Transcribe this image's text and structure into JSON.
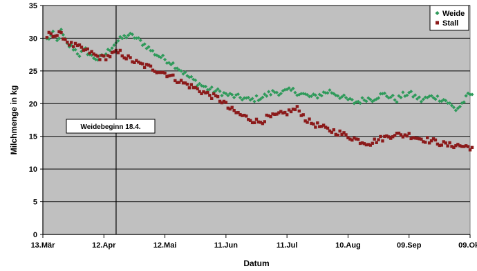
{
  "chart_data": {
    "type": "scatter",
    "title": "",
    "xlabel": "Datum",
    "ylabel": "Milchmenge in kg",
    "ylim": [
      0,
      35
    ],
    "yticks": [
      0,
      5,
      10,
      15,
      20,
      25,
      30,
      35
    ],
    "xlim": [
      "13.Mär",
      "09.Okt"
    ],
    "xticks": [
      {
        "label": "13.Mär",
        "day": 0
      },
      {
        "label": "12.Apr",
        "day": 30
      },
      {
        "label": "12.Mai",
        "day": 60
      },
      {
        "label": "11.Jun",
        "day": 90
      },
      {
        "label": "11.Jul",
        "day": 120
      },
      {
        "label": "10.Aug",
        "day": 150
      },
      {
        "label": "09.Sep",
        "day": 180
      },
      {
        "label": "09.Okt",
        "day": 210
      }
    ],
    "grid": "horizontal",
    "legend_position": "top-right",
    "annotation": {
      "label": "Weidebeginn 18.4.",
      "day": 36
    },
    "series": [
      {
        "name": "Weide",
        "color": "#2e9a5a",
        "marker": "diamond",
        "anchors": [
          [
            2,
            29.8
          ],
          [
            5,
            30.6
          ],
          [
            7,
            29.5
          ],
          [
            9,
            31.0
          ],
          [
            12,
            29.0
          ],
          [
            15,
            28.5
          ],
          [
            18,
            27.5
          ],
          [
            21,
            28.2
          ],
          [
            24,
            27.2
          ],
          [
            27,
            26.8
          ],
          [
            30,
            27.3
          ],
          [
            32,
            28.0
          ],
          [
            34,
            28.8
          ],
          [
            36,
            29.4
          ],
          [
            39,
            30.0
          ],
          [
            42,
            30.5
          ],
          [
            45,
            30.2
          ],
          [
            48,
            29.5
          ],
          [
            51,
            28.8
          ],
          [
            54,
            27.9
          ],
          [
            57,
            27.3
          ],
          [
            60,
            26.8
          ],
          [
            63,
            26.3
          ],
          [
            66,
            25.6
          ],
          [
            69,
            24.8
          ],
          [
            72,
            24.0
          ],
          [
            75,
            23.4
          ],
          [
            78,
            22.8
          ],
          [
            81,
            22.3
          ],
          [
            84,
            22.0
          ],
          [
            87,
            21.8
          ],
          [
            90,
            21.4
          ],
          [
            93,
            21.2
          ],
          [
            96,
            21.0
          ],
          [
            99,
            20.8
          ],
          [
            102,
            20.5
          ],
          [
            105,
            20.8
          ],
          [
            108,
            21.0
          ],
          [
            111,
            21.5
          ],
          [
            114,
            21.8
          ],
          [
            117,
            21.7
          ],
          [
            120,
            21.9
          ],
          [
            123,
            22.0
          ],
          [
            126,
            21.6
          ],
          [
            129,
            21.3
          ],
          [
            132,
            21.0
          ],
          [
            135,
            21.2
          ],
          [
            138,
            21.6
          ],
          [
            141,
            21.9
          ],
          [
            144,
            21.5
          ],
          [
            147,
            21.0
          ],
          [
            150,
            20.6
          ],
          [
            153,
            20.2
          ],
          [
            156,
            20.4
          ],
          [
            159,
            20.8
          ],
          [
            162,
            20.7
          ],
          [
            165,
            21.2
          ],
          [
            168,
            21.4
          ],
          [
            171,
            21.0
          ],
          [
            174,
            20.6
          ],
          [
            177,
            21.3
          ],
          [
            180,
            21.6
          ],
          [
            183,
            21.1
          ],
          [
            186,
            20.5
          ],
          [
            189,
            20.9
          ],
          [
            192,
            21.1
          ],
          [
            195,
            20.8
          ],
          [
            198,
            20.5
          ],
          [
            201,
            19.6
          ],
          [
            203,
            19.1
          ],
          [
            205,
            19.6
          ],
          [
            207,
            20.4
          ],
          [
            209,
            21.2
          ],
          [
            211,
            21.4
          ]
        ]
      },
      {
        "name": "Stall",
        "color": "#8b1a1a",
        "marker": "square",
        "anchors": [
          [
            2,
            30.2
          ],
          [
            4,
            30.9
          ],
          [
            6,
            30.4
          ],
          [
            8,
            30.6
          ],
          [
            10,
            30.3
          ],
          [
            12,
            29.5
          ],
          [
            14,
            29.0
          ],
          [
            17,
            28.7
          ],
          [
            20,
            28.2
          ],
          [
            23,
            27.9
          ],
          [
            26,
            27.3
          ],
          [
            29,
            27.0
          ],
          [
            32,
            27.2
          ],
          [
            35,
            27.7
          ],
          [
            38,
            27.8
          ],
          [
            41,
            27.1
          ],
          [
            44,
            26.6
          ],
          [
            47,
            26.1
          ],
          [
            50,
            25.8
          ],
          [
            53,
            25.5
          ],
          [
            56,
            25.1
          ],
          [
            59,
            24.8
          ],
          [
            62,
            24.4
          ],
          [
            65,
            23.8
          ],
          [
            68,
            23.3
          ],
          [
            71,
            22.9
          ],
          [
            74,
            22.5
          ],
          [
            77,
            22.0
          ],
          [
            80,
            21.6
          ],
          [
            83,
            21.2
          ],
          [
            86,
            20.8
          ],
          [
            89,
            20.2
          ],
          [
            91,
            19.4
          ],
          [
            94,
            18.8
          ],
          [
            97,
            18.3
          ],
          [
            100,
            17.9
          ],
          [
            103,
            17.5
          ],
          [
            106,
            17.2
          ],
          [
            108,
            17.4
          ],
          [
            110,
            17.8
          ],
          [
            113,
            18.0
          ],
          [
            116,
            18.3
          ],
          [
            119,
            18.5
          ],
          [
            122,
            18.9
          ],
          [
            125,
            19.2
          ],
          [
            127,
            18.6
          ],
          [
            129,
            17.7
          ],
          [
            131,
            17.2
          ],
          [
            134,
            16.8
          ],
          [
            137,
            16.4
          ],
          [
            140,
            16.0
          ],
          [
            143,
            15.8
          ],
          [
            146,
            15.5
          ],
          [
            149,
            15.1
          ],
          [
            152,
            14.8
          ],
          [
            155,
            14.4
          ],
          [
            158,
            14.1
          ],
          [
            161,
            14.0
          ],
          [
            164,
            14.4
          ],
          [
            167,
            14.7
          ],
          [
            170,
            15.0
          ],
          [
            173,
            15.4
          ],
          [
            176,
            15.1
          ],
          [
            179,
            15.3
          ],
          [
            182,
            15.0
          ],
          [
            185,
            14.7
          ],
          [
            188,
            14.5
          ],
          [
            191,
            14.3
          ],
          [
            194,
            14.1
          ],
          [
            197,
            13.8
          ],
          [
            200,
            13.6
          ],
          [
            203,
            13.7
          ],
          [
            206,
            13.5
          ],
          [
            209,
            13.4
          ],
          [
            211,
            13.3
          ]
        ]
      }
    ]
  }
}
